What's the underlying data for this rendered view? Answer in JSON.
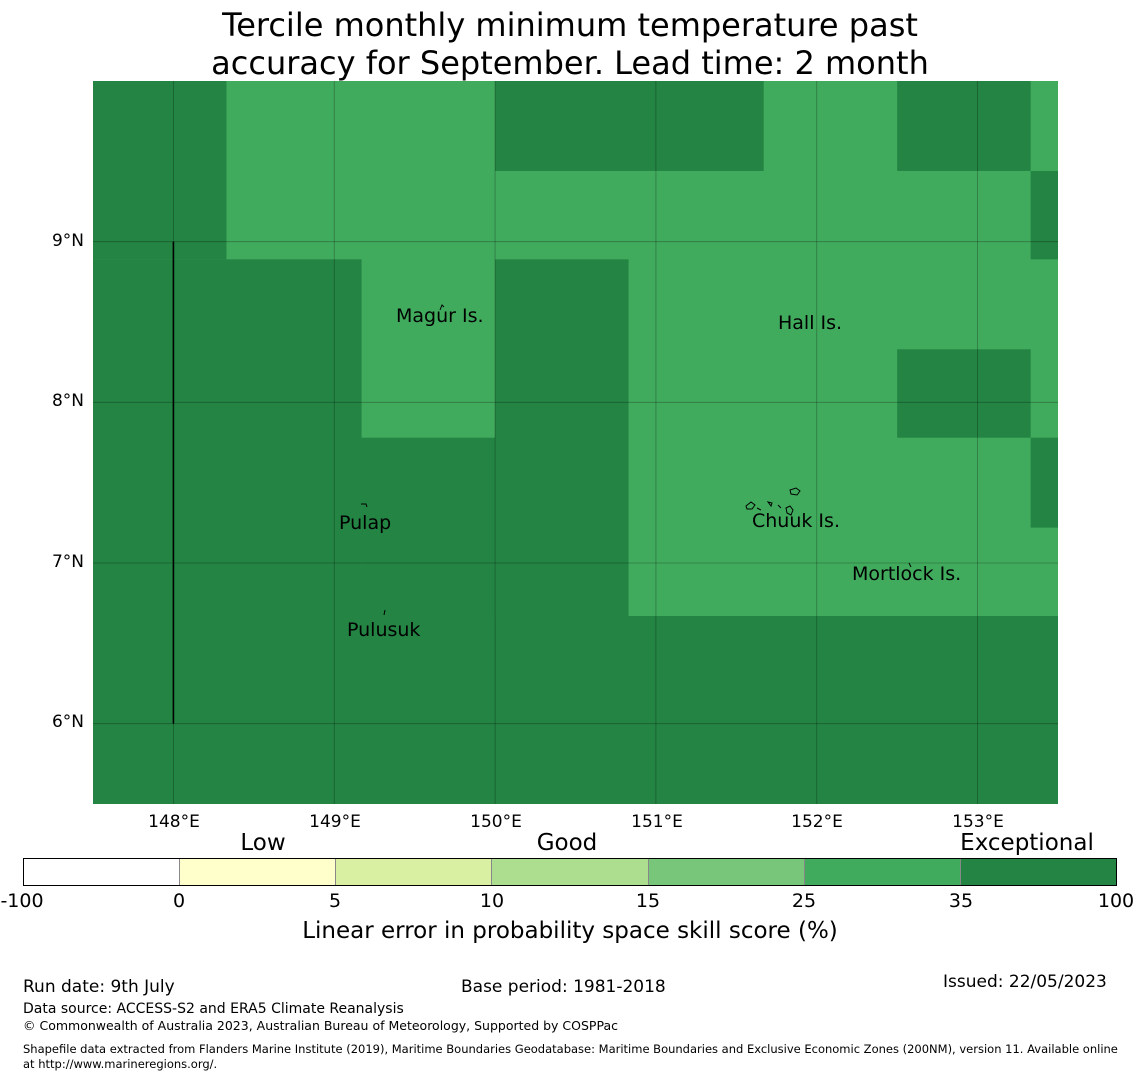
{
  "title": {
    "line1": "Tercile monthly minimum temperature past",
    "line2": "accuracy for September. Lead time: 2 month"
  },
  "map": {
    "lon_range": [
      147.5,
      153.5
    ],
    "lat_range": [
      5.5,
      10.0
    ],
    "lon_ticks": [
      {
        "value": 148,
        "label": "148°E"
      },
      {
        "value": 149,
        "label": "149°E"
      },
      {
        "value": 150,
        "label": "150°E"
      },
      {
        "value": 151,
        "label": "151°E"
      },
      {
        "value": 152,
        "label": "152°E"
      },
      {
        "value": 153,
        "label": "153°E"
      }
    ],
    "lat_ticks": [
      {
        "value": 9,
        "label": "9°N"
      },
      {
        "value": 8,
        "label": "8°N"
      },
      {
        "value": 7,
        "label": "7°N"
      },
      {
        "value": 6,
        "label": "6°N"
      }
    ],
    "grid": true,
    "field_colors": {
      "exceptional": "#238443",
      "good": "#41ab5d"
    },
    "exceptional_cells_lonlat": [
      [
        147.5,
        9.44,
        148.33,
        10.0
      ],
      [
        150.0,
        9.44,
        151.67,
        10.0
      ],
      [
        152.5,
        9.44,
        153.33,
        10.0
      ],
      [
        153.33,
        8.89,
        153.5,
        9.44
      ],
      [
        147.5,
        8.89,
        148.33,
        9.44
      ],
      [
        147.5,
        6.67,
        149.17,
        8.89
      ],
      [
        150.0,
        6.67,
        150.83,
        8.89
      ],
      [
        152.5,
        7.78,
        153.33,
        8.33
      ],
      [
        153.33,
        7.22,
        153.5,
        7.78
      ],
      [
        149.17,
        6.67,
        150.0,
        7.78
      ],
      [
        147.5,
        5.5,
        153.5,
        6.67
      ]
    ],
    "boundary_line": {
      "lon": 148.0,
      "lat_from": 6.0,
      "lat_to": 9.0
    },
    "places": [
      {
        "name": "Magur Is.",
        "lon": 149.38,
        "lat": 8.52
      },
      {
        "name": "Hall Is.",
        "lon": 151.77,
        "lat": 8.48
      },
      {
        "name": "Pulap",
        "lon": 149.03,
        "lat": 7.23
      },
      {
        "name": "Chuuk Is.",
        "lon": 151.6,
        "lat": 7.24
      },
      {
        "name": "Mortlock Is.",
        "lon": 152.22,
        "lat": 6.91
      },
      {
        "name": "Pulusuk",
        "lon": 149.08,
        "lat": 6.57
      }
    ]
  },
  "legend": {
    "categories": [
      {
        "label": "Low",
        "value": 2.5
      },
      {
        "label": "Good",
        "value": 12.5
      },
      {
        "label": "Exceptional",
        "value": 67.5
      }
    ],
    "bounds": [
      "-100",
      "0",
      "5",
      "10",
      "15",
      "25",
      "35",
      "100"
    ],
    "colors": [
      "#ffffff",
      "#ffffcc",
      "#d9f0a3",
      "#addd8e",
      "#78c679",
      "#41ab5d",
      "#238443"
    ],
    "label": "Linear error in probability space skill score (%)"
  },
  "footer": {
    "run_date": "Run date: 9th July",
    "base_period": "Base period: 1981-2018",
    "issued": "Issued: 22/05/2023",
    "data_source": "Data source: ACCESS-S2 and ERA5 Climate Reanalysis",
    "copyright": "© Commonwealth of Australia 2023, Australian Bureau of Meteorology, Supported by COSPPac",
    "shapefile": "Shapefile data extracted from Flanders Marine Institute (2019), Maritime Boundaries Geodatabase: Maritime Boundaries and Exclusive Economic Zones (200NM), version 11. Available online at http://www.marineregions.org/."
  }
}
